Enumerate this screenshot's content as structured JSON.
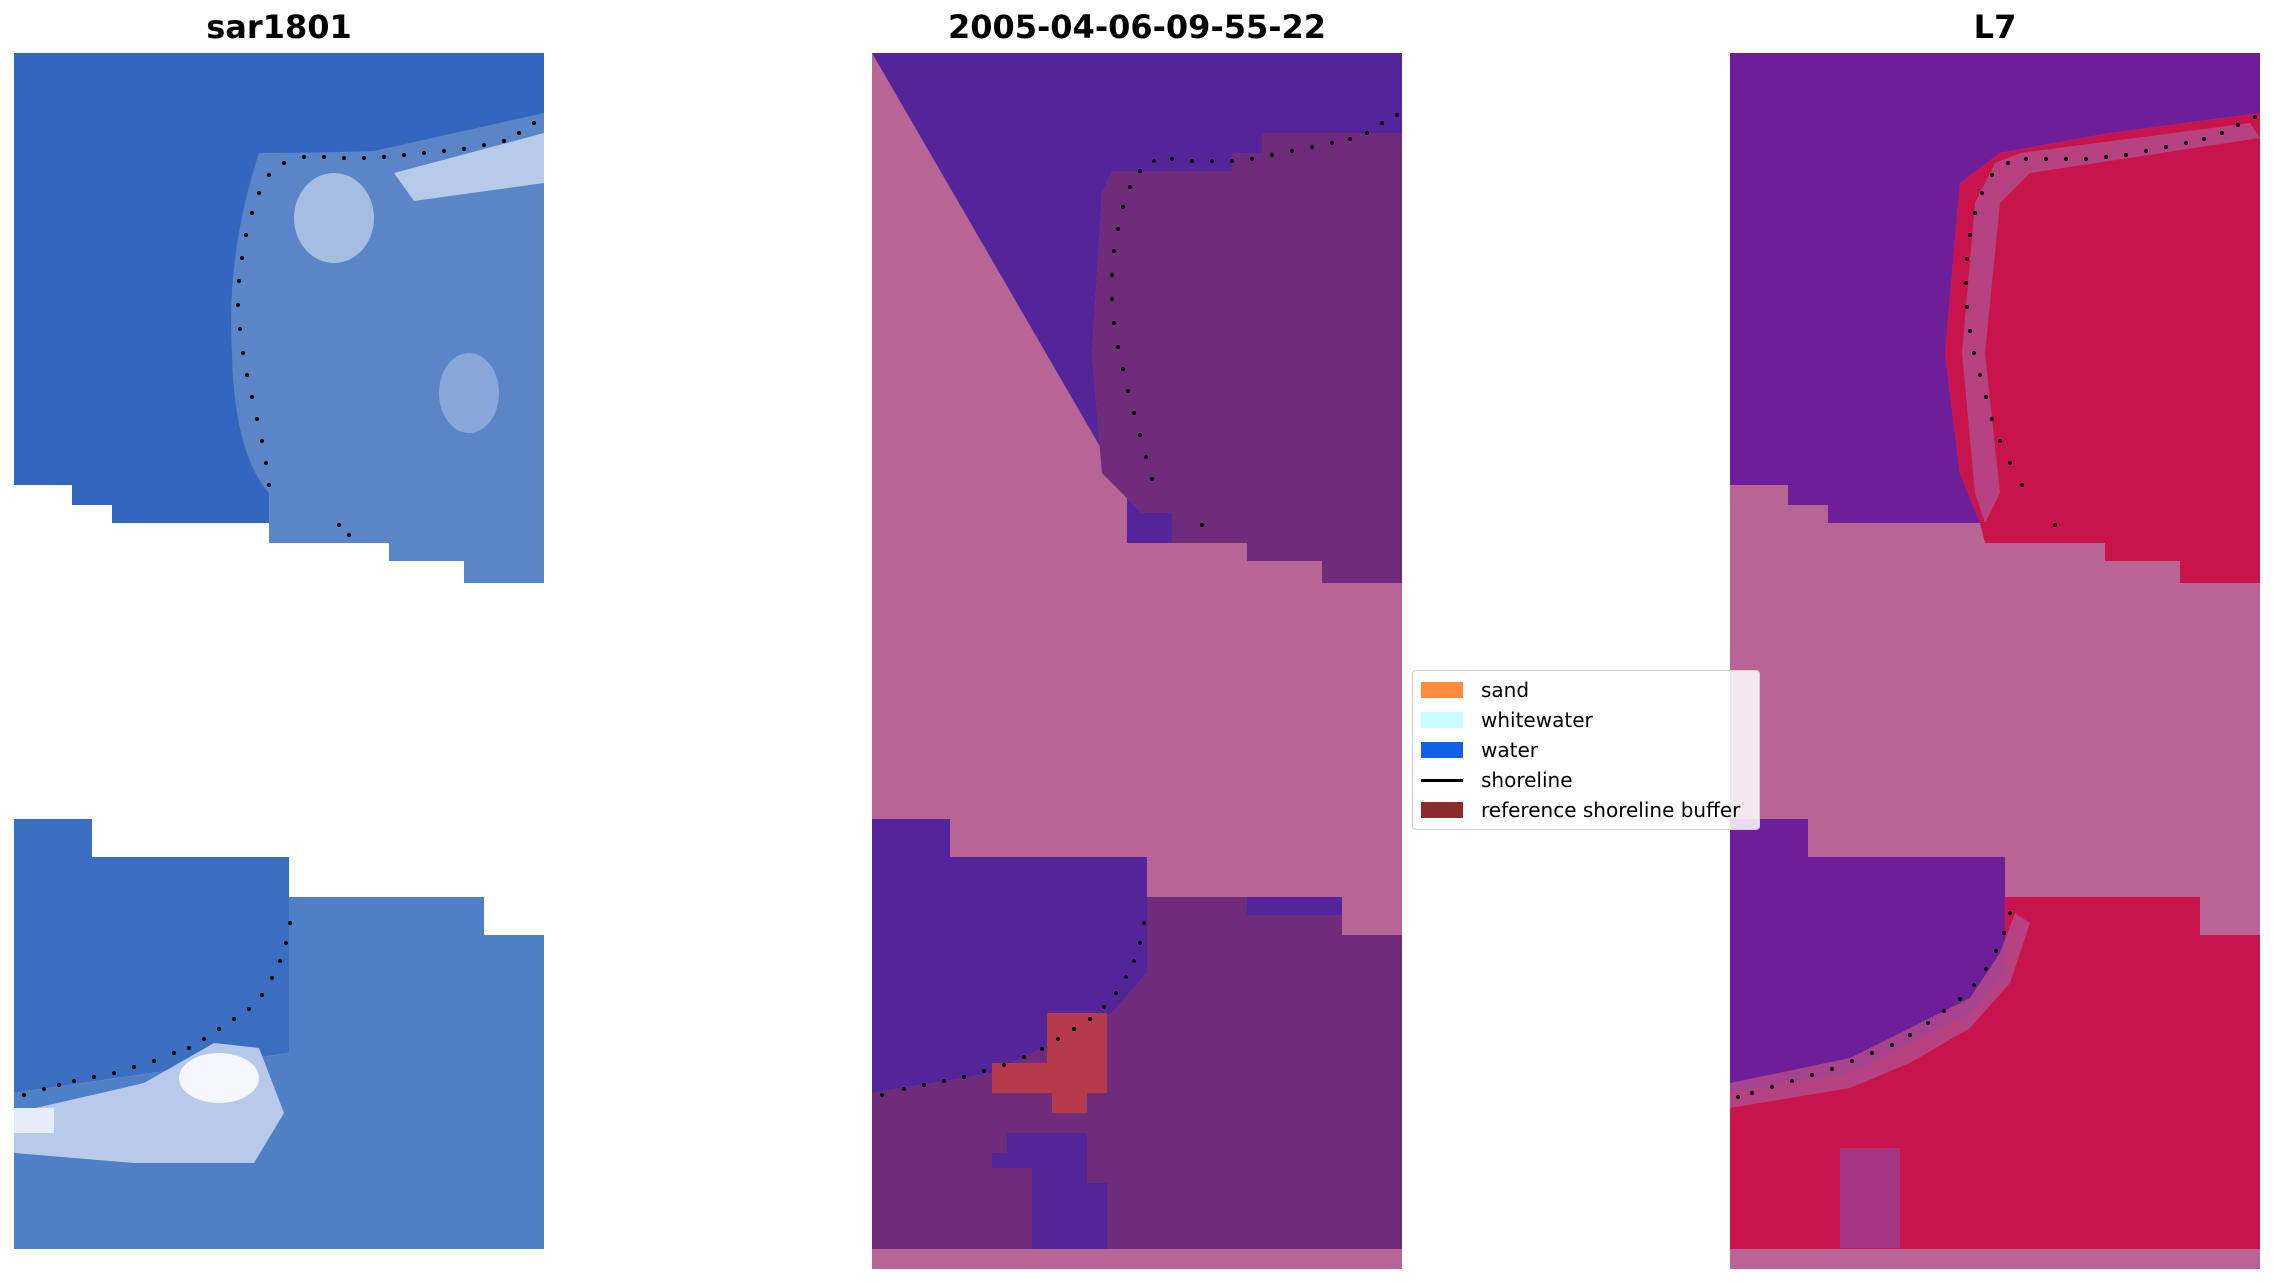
{
  "panels": [
    {
      "title": "sar1801"
    },
    {
      "title": "2005-04-06-09-55-22"
    },
    {
      "title": "L7"
    }
  ],
  "legend": {
    "items": [
      {
        "label": "sand",
        "color": "#ff8c3a",
        "kind": "patch"
      },
      {
        "label": "whitewater",
        "color": "#c8ffff",
        "kind": "patch"
      },
      {
        "label": "water",
        "color": "#1060e8",
        "kind": "patch"
      },
      {
        "label": "shoreline",
        "color": "#000000",
        "kind": "line"
      },
      {
        "label": "reference shoreline buffer",
        "color": "#8b2b2b",
        "kind": "patch"
      }
    ]
  },
  "colors": {
    "rgb_water": "#3566bd",
    "rgb_land": "#5a86c8",
    "rgb_whitewater": "#e8eef8",
    "class_water": "#53249a",
    "class_land": "#6e2c7a",
    "class_nodata": "#b76595",
    "class_buffer": "#b53a4a",
    "ndwi_water": "#6f1e9a",
    "ndwi_land": "#c8144a",
    "ndwi_nodata": "#b76595",
    "shoreline": "#000000"
  }
}
